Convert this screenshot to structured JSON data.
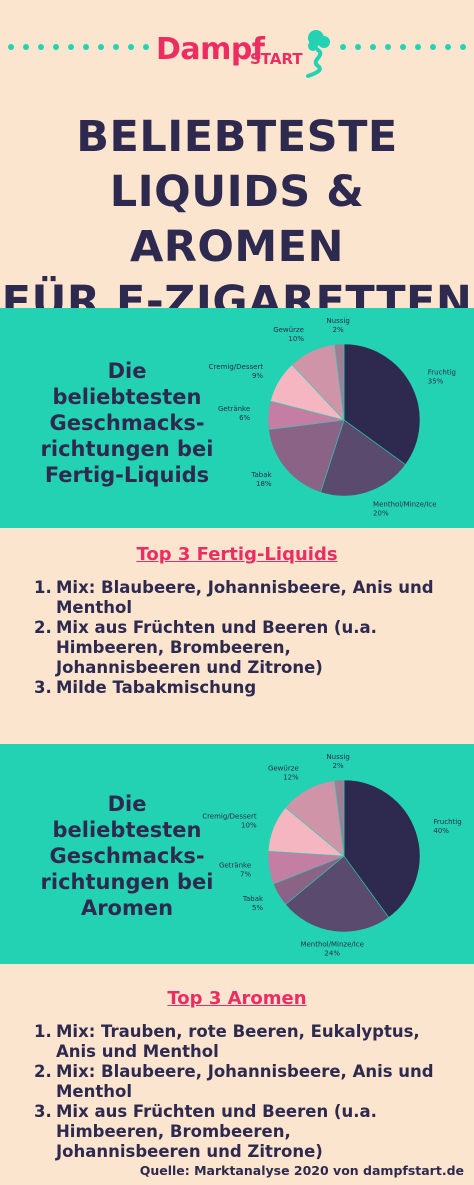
{
  "logo": {
    "main": "Dampf",
    "sub": "START"
  },
  "title": [
    "BELIEBTESTE",
    "LIQUIDS & AROMEN",
    "FÜR E-ZIGARETTEN"
  ],
  "section1": {
    "label": [
      "Die",
      "beliebtesten",
      "Geschmacks-",
      "richtungen bei",
      "Fertig-Liquids"
    ],
    "list_heading": "Top 3 Fertig-Liquids",
    "list": [
      {
        "num": "1.",
        "text": [
          "Mix: Blaubeere, Johannisbeere, Anis und",
          "Menthol"
        ]
      },
      {
        "num": "2.",
        "text": [
          "Mix aus Früchten und Beeren (u.a.",
          "Himbeeren, Brombeeren,",
          "Johannisbeeren und Zitrone)"
        ]
      },
      {
        "num": "3.",
        "text": [
          "Milde Tabakmischung"
        ]
      }
    ]
  },
  "section2": {
    "label": [
      "Die",
      "beliebtesten",
      "Geschmacks-",
      "richtungen bei",
      "Aromen"
    ],
    "list_heading": "Top 3 Aromen",
    "list": [
      {
        "num": "1.",
        "text": [
          "Mix: Trauben, rote Beeren, Eukalyptus,",
          "Anis und Menthol"
        ]
      },
      {
        "num": "2.",
        "text": [
          "Mix: Blaubeere, Johannisbeere, Anis und",
          "Menthol"
        ]
      },
      {
        "num": "3.",
        "text": [
          "Mix aus Früchten und Beeren (u.a.",
          "Himbeeren, Brombeeren,",
          "Johannisbeeren und Zitrone)"
        ]
      }
    ]
  },
  "source": "Quelle: Marktanalyse 2020 von dampfstart.de",
  "colors": {
    "background": "#fbe5cf",
    "band": "#23d2b3",
    "accent": "#ec2d62",
    "text": "#2e2a4f"
  },
  "chart_data": [
    {
      "type": "pie",
      "categories": [
        "Fruchtig",
        "Menthol/Minze/Ice",
        "Tabak",
        "Getränke",
        "Cremig/Dessert",
        "Gewürze",
        "Nussig"
      ],
      "values": [
        35,
        20,
        18,
        6,
        9,
        10,
        2
      ],
      "value_labels": [
        "35%",
        "20%",
        "18%",
        "6%",
        "9%",
        "10%",
        "2%"
      ],
      "colors": [
        "#2e2a4f",
        "#5a4a6e",
        "#8a6386",
        "#c47ea3",
        "#f5b6c1",
        "#cf94a8",
        "#a07d94"
      ]
    },
    {
      "type": "pie",
      "categories": [
        "Fruchtig",
        "Menthol/Minze/Ice",
        "Tabak",
        "Getränke",
        "Cremig/Dessert",
        "Gewürze",
        "Nussig"
      ],
      "values": [
        40,
        24,
        5,
        7,
        10,
        12,
        2
      ],
      "value_labels": [
        "40%",
        "24%",
        "5%",
        "7%",
        "10%",
        "12%",
        "2%"
      ],
      "colors": [
        "#2e2a4f",
        "#5a4a6e",
        "#8a6386",
        "#c47ea3",
        "#f5b6c1",
        "#cf94a8",
        "#a07d94"
      ]
    }
  ]
}
